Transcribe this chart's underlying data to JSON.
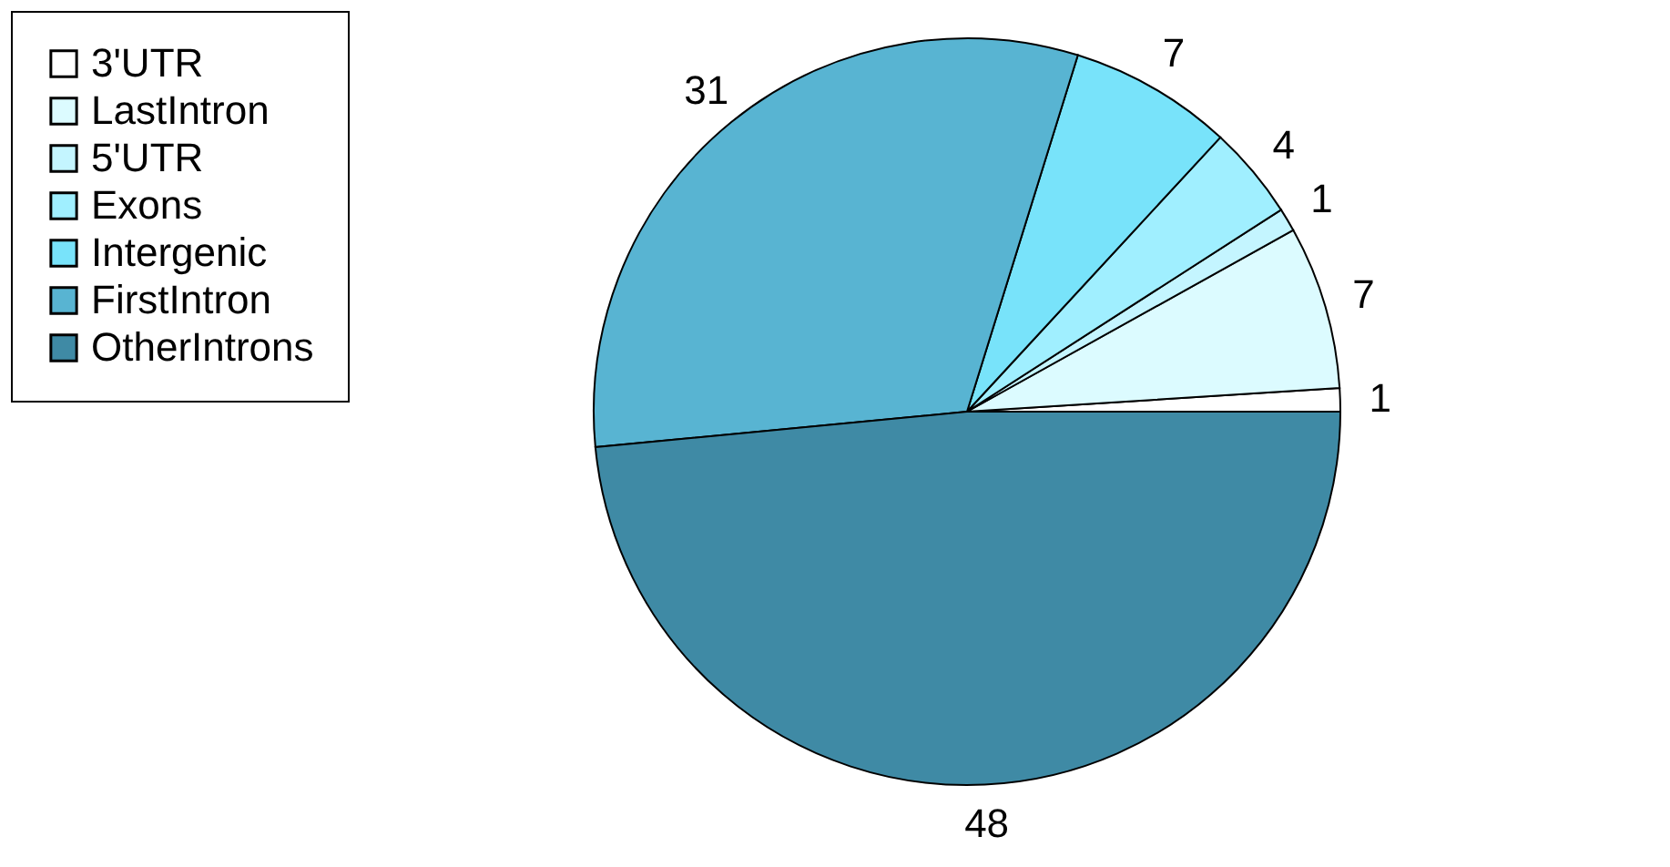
{
  "chart_data": {
    "type": "pie",
    "categories": [
      "3'UTR",
      "LastIntron",
      "5'UTR",
      "Exons",
      "Intergenic",
      "FirstIntron",
      "OtherIntrons"
    ],
    "values": [
      1,
      7,
      1,
      4,
      7,
      31,
      48
    ],
    "colors": [
      "#ffffff",
      "#dcfbff",
      "#c4f5ff",
      "#a0efff",
      "#78e3fa",
      "#58b4d2",
      "#3f8aa5"
    ],
    "data_labels": true,
    "legend": "left"
  }
}
